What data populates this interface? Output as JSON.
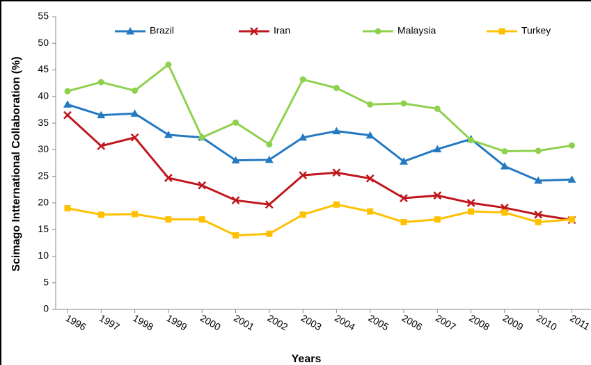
{
  "chart_data": {
    "type": "line",
    "x_label": "Years",
    "y_label": "Scimago Intternational Collaboration (%)",
    "categories": [
      "1996",
      "1997",
      "1998",
      "1999",
      "2000",
      "2001",
      "2002",
      "2003",
      "2004",
      "2005",
      "2006",
      "2007",
      "2008",
      "2009",
      "2010",
      "2011"
    ],
    "series": [
      {
        "name": "Brazil",
        "color": "#2479c1",
        "marker": "triangle",
        "values": [
          38.5,
          36.5,
          36.8,
          32.8,
          32.3,
          28,
          28.1,
          32.3,
          33.5,
          32.7,
          27.8,
          30.1,
          32,
          26.9,
          24.2,
          24.4
        ]
      },
      {
        "name": "Iran",
        "color": "#c0161c",
        "marker": "x",
        "values": [
          36.5,
          30.7,
          32.3,
          24.7,
          23.3,
          20.5,
          19.7,
          25.2,
          25.7,
          24.6,
          20.9,
          21.4,
          20,
          19.1,
          17.8,
          16.8
        ]
      },
      {
        "name": "Malaysia",
        "color": "#8fd14f",
        "marker": "circle",
        "values": [
          41,
          42.7,
          41.1,
          46,
          32.3,
          35.1,
          31,
          43.2,
          41.6,
          38.5,
          38.7,
          37.7,
          31.8,
          29.7,
          29.8,
          30.8
        ]
      },
      {
        "name": "Turkey",
        "color": "#ffc000",
        "marker": "square",
        "values": [
          19,
          17.8,
          17.9,
          16.9,
          16.9,
          13.9,
          14.2,
          17.8,
          19.7,
          18.4,
          16.4,
          16.9,
          18.4,
          18.2,
          16.4,
          16.9
        ]
      }
    ],
    "ylim": [
      0,
      55
    ],
    "yticks": [
      0,
      5,
      10,
      15,
      20,
      25,
      30,
      35,
      40,
      45,
      50,
      55
    ],
    "grid": false,
    "legend": "top"
  }
}
